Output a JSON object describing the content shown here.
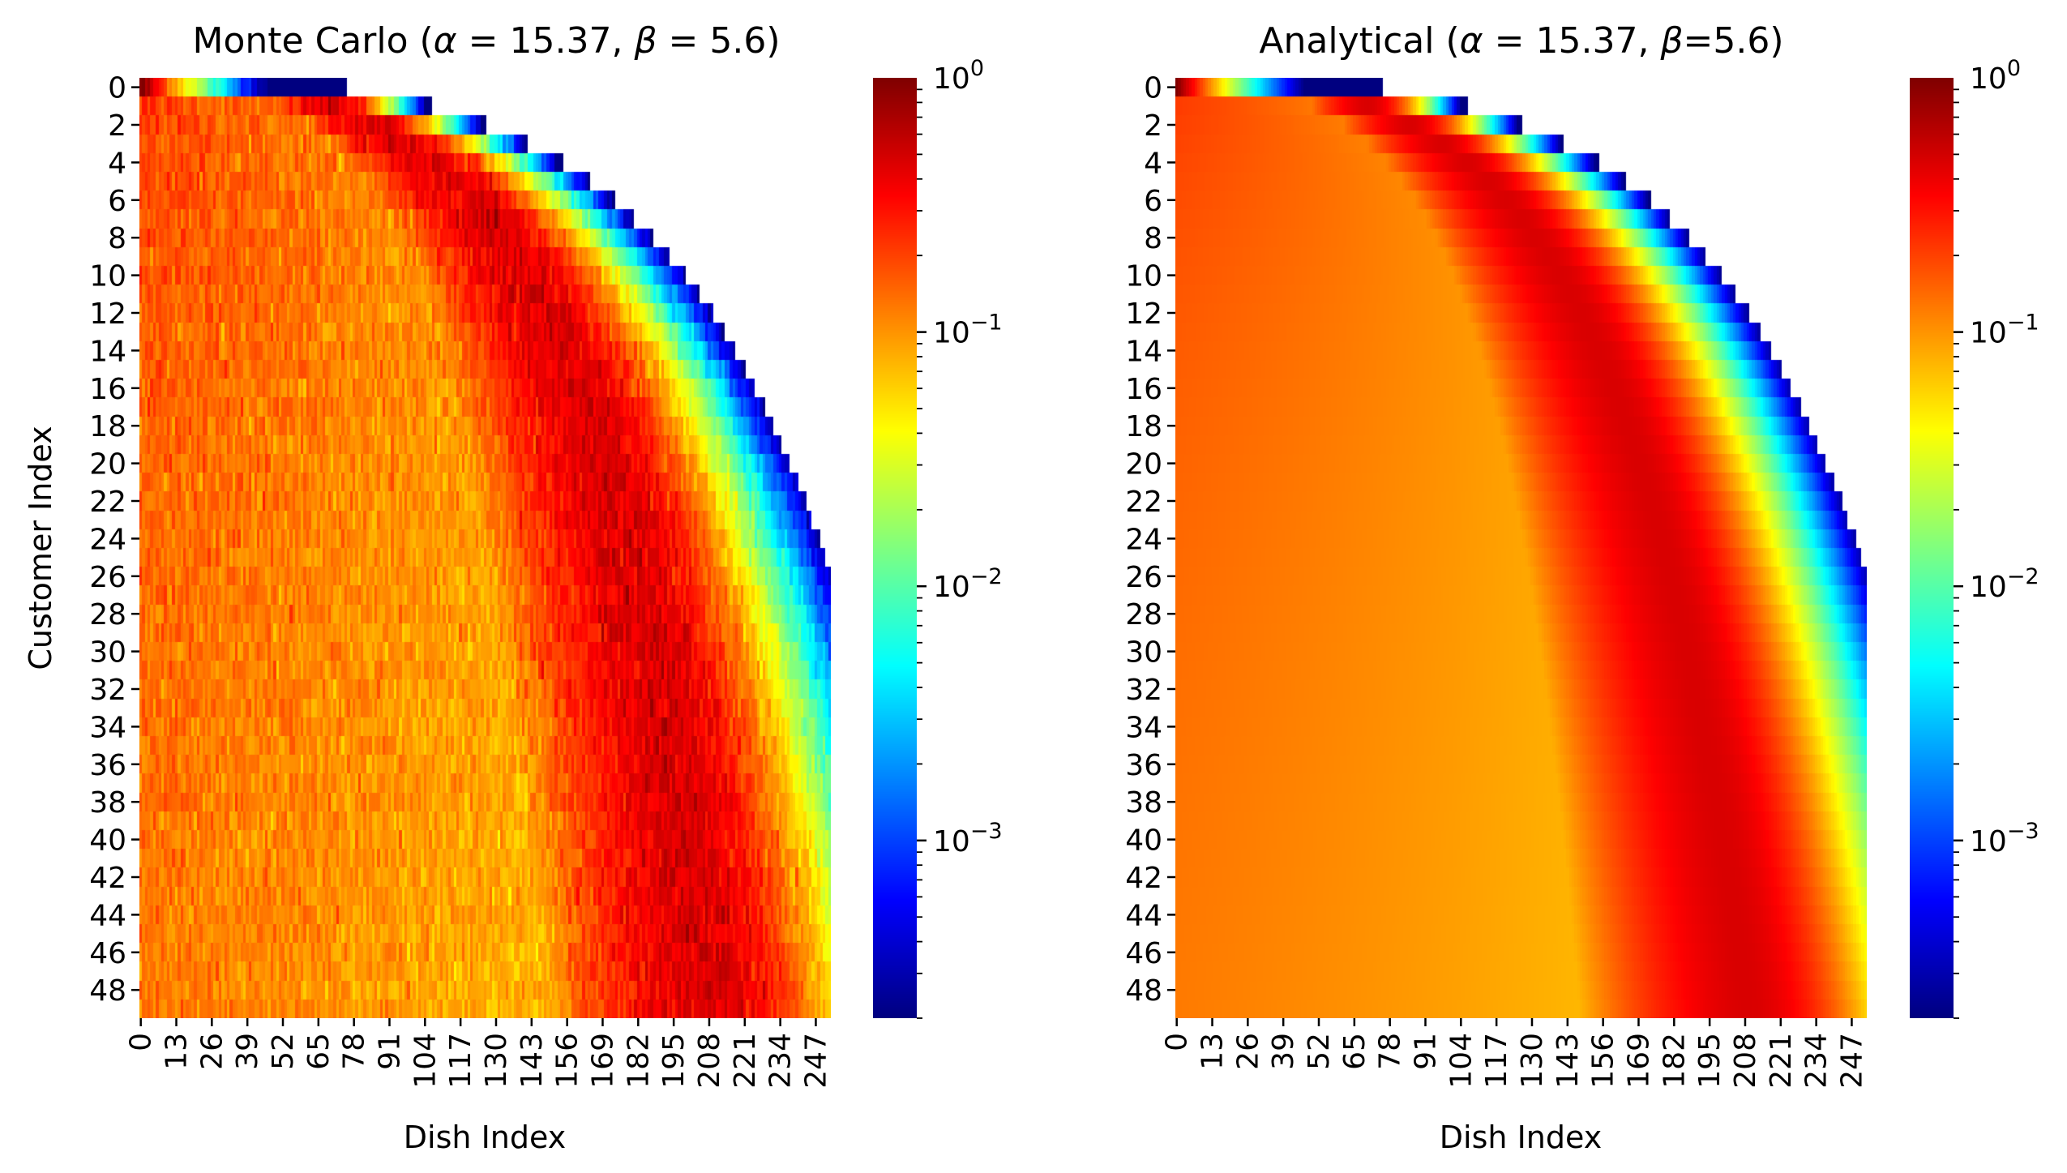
{
  "chart_data": [
    {
      "type": "heatmap",
      "title": "Monte Carlo (α = 15.37, β = 5.6)",
      "xlabel": "Dish Index",
      "ylabel": "Customer Index",
      "x_ticks": [
        "0",
        "13",
        "26",
        "39",
        "52",
        "65",
        "78",
        "91",
        "104",
        "117",
        "130",
        "143",
        "156",
        "169",
        "182",
        "195",
        "208",
        "221",
        "234",
        "247"
      ],
      "y_ticks": [
        "0",
        "2",
        "4",
        "6",
        "8",
        "10",
        "12",
        "14",
        "16",
        "18",
        "20",
        "22",
        "24",
        "26",
        "28",
        "30",
        "32",
        "34",
        "36",
        "38",
        "40",
        "42",
        "44",
        "46",
        "48"
      ],
      "n_customers": 50,
      "n_dishes": 253,
      "alpha": 15.37,
      "beta": 5.6,
      "colormap": "jet",
      "color_scale": "log",
      "vmin": 0.0002,
      "vmax": 1,
      "colorbar_ticks": [
        "10^0",
        "10^-1",
        "10^-2",
        "10^-3"
      ],
      "noisy_estimate": true
    },
    {
      "type": "heatmap",
      "title": "Analytical (α = 15.37, β=5.6)",
      "xlabel": "Dish Index",
      "ylabel": "",
      "x_ticks": [
        "0",
        "13",
        "26",
        "39",
        "52",
        "65",
        "78",
        "91",
        "104",
        "117",
        "130",
        "143",
        "156",
        "169",
        "182",
        "195",
        "208",
        "221",
        "234",
        "247"
      ],
      "y_ticks": [
        "0",
        "2",
        "4",
        "6",
        "8",
        "10",
        "12",
        "14",
        "16",
        "18",
        "20",
        "22",
        "24",
        "26",
        "28",
        "30",
        "32",
        "34",
        "36",
        "38",
        "40",
        "42",
        "44",
        "46",
        "48"
      ],
      "n_customers": 50,
      "n_dishes": 253,
      "alpha": 15.37,
      "beta": 5.6,
      "colormap": "jet",
      "color_scale": "log",
      "vmin": 0.0002,
      "vmax": 1,
      "colorbar_ticks": [
        "10^0",
        "10^-1",
        "10^-2",
        "10^-3"
      ],
      "noisy_estimate": false
    }
  ]
}
